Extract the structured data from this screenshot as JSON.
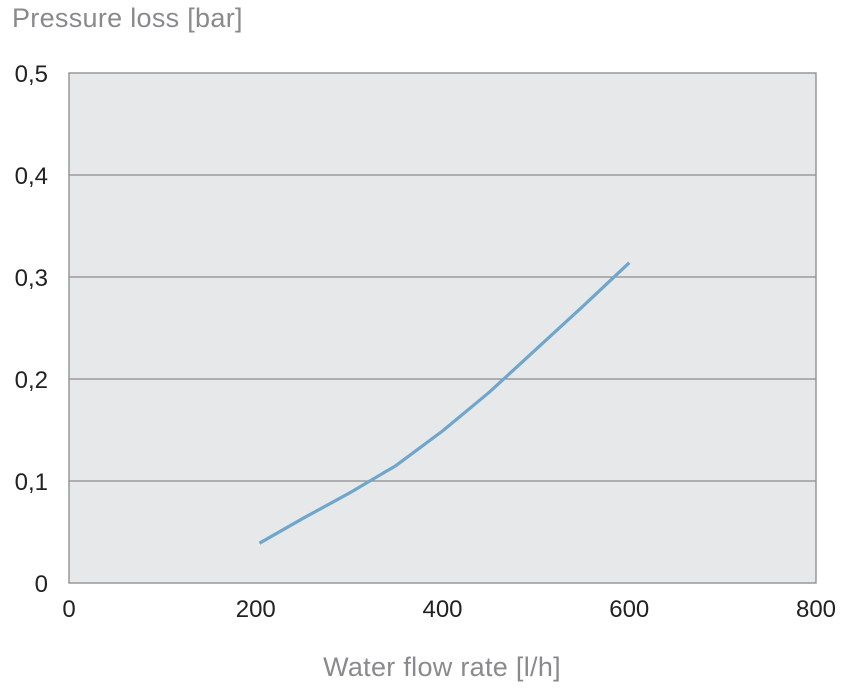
{
  "chart_data": {
    "type": "line",
    "ylabel": "Pressure loss [bar]",
    "xlabel": "Water flow rate [l/h]",
    "xlim": [
      0,
      800
    ],
    "ylim": [
      0,
      0.5
    ],
    "x_ticks": [
      0,
      200,
      400,
      600,
      800
    ],
    "x_tick_labels": [
      "0",
      "200",
      "400",
      "600",
      "800"
    ],
    "y_ticks": [
      0,
      0.1,
      0.2,
      0.3,
      0.4,
      0.5
    ],
    "y_tick_labels": [
      "0",
      "0,1",
      "0,2",
      "0,3",
      "0,4",
      "0,5"
    ],
    "grid": "horizontal",
    "series": [
      {
        "color": "#6fa6cc",
        "x": [
          204,
          250,
          300,
          350,
          400,
          450,
          500,
          550,
          600
        ],
        "y": [
          0.039,
          0.063,
          0.088,
          0.115,
          0.149,
          0.187,
          0.229,
          0.271,
          0.314
        ]
      }
    ]
  }
}
